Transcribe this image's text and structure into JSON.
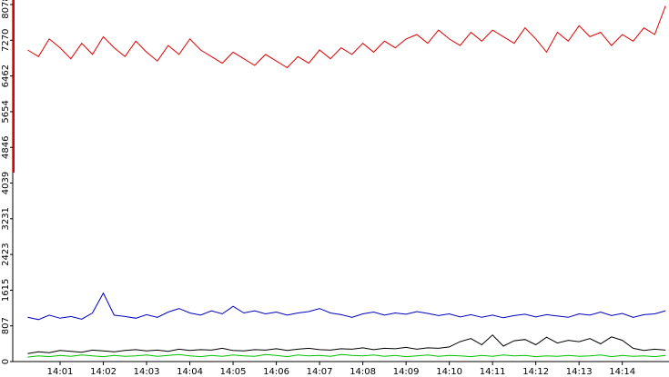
{
  "chart_data": {
    "type": "line",
    "x": [
      0.25,
      0.5,
      0.75,
      1,
      1.25,
      1.5,
      1.75,
      2,
      2.25,
      2.5,
      2.75,
      3,
      3.25,
      3.5,
      3.75,
      4,
      4.25,
      4.5,
      4.75,
      5,
      5.25,
      5.5,
      5.75,
      6,
      6.25,
      6.5,
      6.75,
      7,
      7.25,
      7.5,
      7.75,
      8,
      8.25,
      8.5,
      8.75,
      9,
      9.25,
      9.5,
      9.75,
      10,
      10.25,
      10.5,
      10.75,
      11,
      11.25,
      11.5,
      11.75,
      12,
      12.25,
      12.5,
      12.75,
      13,
      13.25,
      13.5,
      13.75,
      14,
      14.25,
      14.5,
      14.75,
      15
    ],
    "series": [
      {
        "color": "#e00000",
        "values": [
          7050,
          6900,
          7300,
          7100,
          6850,
          7200,
          6950,
          7350,
          7100,
          6900,
          7250,
          7000,
          6800,
          7150,
          6950,
          7300,
          7050,
          6900,
          6750,
          7000,
          6850,
          6700,
          6950,
          6800,
          6650,
          6900,
          6750,
          7050,
          6850,
          7100,
          6950,
          7200,
          7000,
          7250,
          7100,
          7300,
          7400,
          7200,
          7500,
          7300,
          7150,
          7450,
          7250,
          7500,
          7350,
          7200,
          7550,
          7300,
          7000,
          7450,
          7250,
          7600,
          7350,
          7450,
          7150,
          7400,
          7250,
          7550,
          7400,
          8050
        ]
      },
      {
        "color": "#0000c0",
        "values": [
          1000,
          950,
          1050,
          980,
          1020,
          960,
          1100,
          1550,
          1050,
          1020,
          980,
          1060,
          1000,
          1120,
          1200,
          1100,
          1050,
          1150,
          1080,
          1250,
          1100,
          1150,
          1080,
          1120,
          1050,
          1100,
          1130,
          1200,
          1100,
          1060,
          1000,
          1080,
          1120,
          1050,
          1100,
          1070,
          1130,
          1090,
          1040,
          1080,
          1010,
          1060,
          1000,
          1050,
          990,
          1040,
          1070,
          1010,
          1060,
          1030,
          1000,
          1080,
          1050,
          1120,
          1040,
          1090,
          1000,
          1060,
          1080,
          1150
        ]
      },
      {
        "color": "#000000",
        "values": [
          180,
          220,
          200,
          250,
          230,
          210,
          260,
          240,
          220,
          250,
          270,
          240,
          260,
          230,
          280,
          250,
          270,
          260,
          300,
          250,
          240,
          270,
          260,
          290,
          250,
          280,
          300,
          270,
          260,
          290,
          280,
          310,
          270,
          300,
          290,
          320,
          280,
          310,
          300,
          330,
          450,
          520,
          380,
          600,
          350,
          470,
          500,
          380,
          550,
          420,
          480,
          450,
          520,
          400,
          560,
          480,
          300,
          250,
          280,
          260
        ]
      },
      {
        "color": "#00c000",
        "values": [
          100,
          130,
          110,
          140,
          120,
          150,
          130,
          110,
          140,
          120,
          130,
          150,
          120,
          140,
          160,
          130,
          110,
          140,
          120,
          150,
          130,
          120,
          160,
          140,
          110,
          150,
          130,
          140,
          120,
          160,
          140,
          130,
          150,
          120,
          140,
          110,
          130,
          150,
          120,
          140,
          130,
          110,
          140,
          120,
          150,
          130,
          140,
          110,
          130,
          120,
          140,
          120,
          130,
          150,
          110,
          140,
          120,
          130,
          110,
          140
        ]
      }
    ],
    "xlim": [
      0,
      15.08
    ],
    "xticks": [
      {
        "value": 1,
        "label": "14:01"
      },
      {
        "value": 2,
        "label": "14:02"
      },
      {
        "value": 3,
        "label": "14:03"
      },
      {
        "value": 4,
        "label": "14:04"
      },
      {
        "value": 5,
        "label": "14:05"
      },
      {
        "value": 6,
        "label": "14:06"
      },
      {
        "value": 7,
        "label": "14:07"
      },
      {
        "value": 8,
        "label": "14:08"
      },
      {
        "value": 9,
        "label": "14:09"
      },
      {
        "value": 10,
        "label": "14:10"
      },
      {
        "value": 11,
        "label": "14:11"
      },
      {
        "value": 12,
        "label": "14:12"
      },
      {
        "value": 13,
        "label": "14:13"
      },
      {
        "value": 14,
        "label": "14:14"
      }
    ],
    "ylim": [
      0,
      8078
    ],
    "yticks": [
      0,
      807,
      1615,
      2423,
      3231,
      4039,
      4846,
      5654,
      6462,
      7270,
      8078
    ]
  }
}
